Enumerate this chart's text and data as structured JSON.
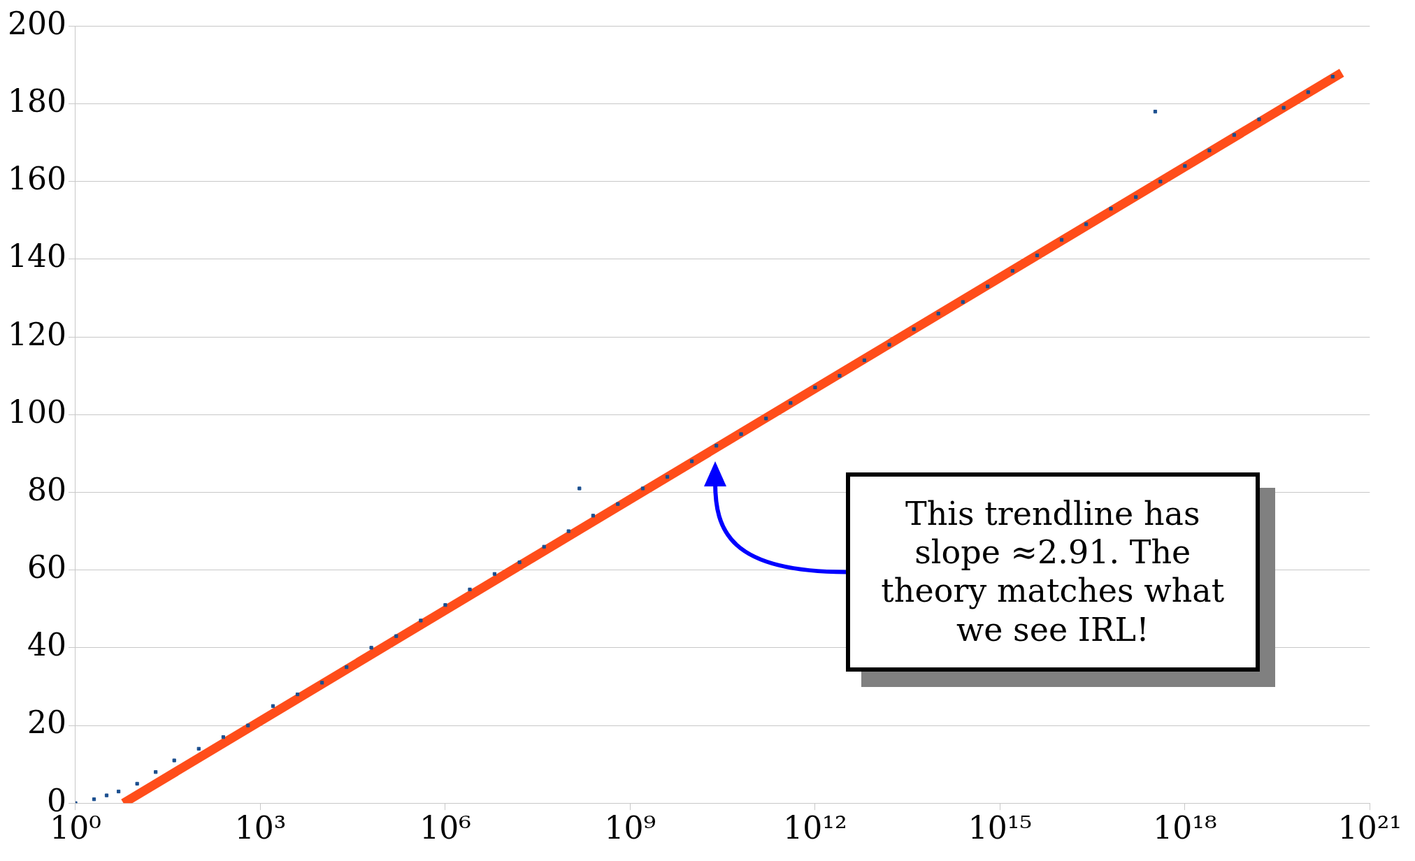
{
  "chart_data": {
    "type": "scatter",
    "log": "x",
    "grid": "y",
    "legend": false,
    "xlim": [
      1,
      1e+21
    ],
    "xticks": [
      {
        "value": 1,
        "label": "10⁰"
      },
      {
        "value": 1000.0,
        "label": "10³"
      },
      {
        "value": 1000000.0,
        "label": "10⁶"
      },
      {
        "value": 1000000000.0,
        "label": "10⁹"
      },
      {
        "value": 1000000000000.0,
        "label": "10¹²"
      },
      {
        "value": 1000000000000000.0,
        "label": "10¹⁵"
      },
      {
        "value": 1e+18,
        "label": "10¹⁸"
      },
      {
        "value": 1e+21,
        "label": "10²¹"
      }
    ],
    "ylim": [
      0,
      200
    ],
    "yticks": [
      0,
      20,
      40,
      60,
      80,
      100,
      120,
      140,
      160,
      180,
      200
    ],
    "series": [
      {
        "marker": "square",
        "color": "#1b4f8f",
        "x": [
          1,
          2,
          3.2,
          5,
          10,
          20,
          40,
          100,
          250,
          630,
          1600.0,
          4000.0,
          10000.0,
          25000.0,
          63000.0,
          160000.0,
          400000.0,
          1000000.0,
          2500000.0,
          6300000.0,
          16000000.0,
          40000000.0,
          100000000.0,
          250000000.0,
          630000000.0,
          1600000000.0,
          4000000000.0,
          10000000000.0,
          25000000000.0,
          63000000000.0,
          160000000000.0,
          400000000000.0,
          1000000000000.0,
          2500000000000.0,
          6300000000000.0,
          16000000000000.0,
          40000000000000.0,
          100000000000000.0,
          250000000000000.0,
          630000000000000.0,
          1600000000000000.0,
          4000000000000000.0,
          1e+16,
          2.5e+16,
          6.3e+16,
          1.6e+17,
          4e+17,
          1e+18,
          2.5e+18,
          6.3e+18,
          1.6e+19,
          4e+19,
          1e+20,
          2.5e+20,
          150000000.0,
          3.3e+17
        ],
        "values": [
          0,
          1,
          2,
          3,
          5,
          8,
          11,
          14,
          17,
          20,
          25,
          28,
          31,
          35,
          40,
          43,
          47,
          51,
          55,
          59,
          62,
          66,
          70,
          74,
          77,
          81,
          84,
          88,
          92,
          95,
          99,
          103,
          107,
          110,
          114,
          118,
          122,
          126,
          129,
          133,
          137,
          141,
          145,
          149,
          153,
          156,
          160,
          164,
          168,
          172,
          176,
          179,
          183,
          187,
          81,
          178
        ]
      },
      {
        "type": "line",
        "marker": "none",
        "color": "#ff4d1a",
        "x": [
          6,
          3.5e+20
        ],
        "values": [
          0,
          188
        ]
      }
    ],
    "annotations": [
      "This trendline has slope ≈2.91. The theory matches what we see IRL!"
    ]
  }
}
